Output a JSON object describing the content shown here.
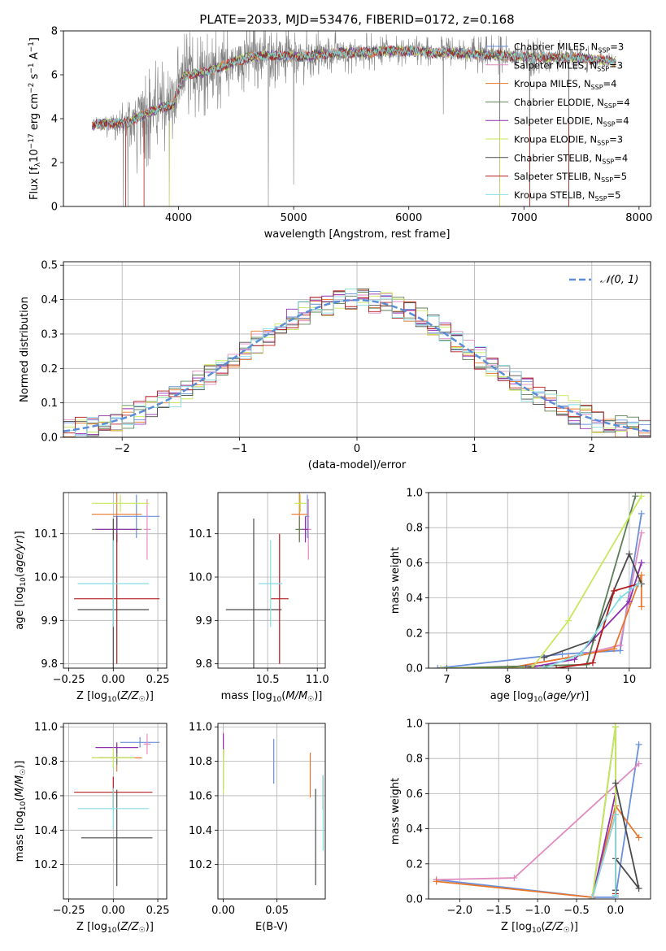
{
  "colors": {
    "Chabrier MILES": "#6a8fdc",
    "Salpeter MILES": "#e08ac0",
    "Kroupa MILES": "#e8772c",
    "Chabrier ELODIE": "#5c7f55",
    "Salpeter ELODIE": "#8e2fb0",
    "Kroupa ELODIE": "#c6e85a",
    "Chabrier STELIB": "#4a4a4a",
    "Salpeter STELIB": "#b31b1b",
    "Kroupa STELIB": "#86dde2",
    "gaussian": "#5b8ed6",
    "data": "#808080"
  },
  "chart_data": [
    {
      "id": "spectrum",
      "type": "line",
      "title": "PLATE=2033, MJD=53476, FIBERID=0172, z=0.168",
      "xlabel": "wavelength [Angstrom, rest frame]",
      "ylabel": "Flux [f_λ 10⁻¹⁷ erg cm⁻² s⁻¹ A⁻¹]",
      "xlim": [
        3000,
        8100
      ],
      "ylim": [
        0,
        8
      ],
      "xticks": [
        4000,
        5000,
        6000,
        7000,
        8000
      ],
      "yticks": [
        0,
        2,
        4,
        6,
        8
      ],
      "legend_position": "right",
      "legend": [
        {
          "label": "Chabrier MILES, N",
          "sub": "SSP",
          "tail": "=3"
        },
        {
          "label": "Salpeter MILES, N",
          "sub": "SSP",
          "tail": "=3"
        },
        {
          "label": "Kroupa MILES, N",
          "sub": "SSP",
          "tail": "=4"
        },
        {
          "label": "Chabrier ELODIE, N",
          "sub": "SSP",
          "tail": "=4"
        },
        {
          "label": "Salpeter ELODIE, N",
          "sub": "SSP",
          "tail": "=4"
        },
        {
          "label": "Kroupa ELODIE, N",
          "sub": "SSP",
          "tail": "=3"
        },
        {
          "label": "Chabrier STELIB, N",
          "sub": "SSP",
          "tail": "=4"
        },
        {
          "label": "Salpeter STELIB, N",
          "sub": "SSP",
          "tail": "=5"
        },
        {
          "label": "Kroupa STELIB, N",
          "sub": "SSP",
          "tail": "=5"
        }
      ],
      "continuum": {
        "x": [
          3250,
          3400,
          3550,
          3700,
          3850,
          3950,
          4050,
          4200,
          4400,
          4600,
          4800,
          5000,
          5200,
          5400,
          5600,
          5800,
          6000,
          6200,
          6400,
          6600,
          6800,
          7000,
          7200,
          7400,
          7600,
          7800
        ],
        "y": [
          3.7,
          3.8,
          3.8,
          4.2,
          4.5,
          4.6,
          6.0,
          6.1,
          6.4,
          6.8,
          6.9,
          6.8,
          6.9,
          7.0,
          7.0,
          7.1,
          7.1,
          7.0,
          7.0,
          6.9,
          6.9,
          6.8,
          6.8,
          6.8,
          6.7,
          6.6
        ]
      },
      "noise_amplitude": {
        "x": [
          3250,
          3500,
          3700,
          4000,
          4500,
          5000,
          5500,
          6000,
          6500,
          7000,
          7500,
          7800
        ],
        "y": [
          0.3,
          0.8,
          1.8,
          1.6,
          1.3,
          1.0,
          0.7,
          0.5,
          0.6,
          0.7,
          0.5,
          0.2
        ]
      },
      "drops": [
        [
          3520,
          0
        ],
        [
          3560,
          0
        ],
        [
          3640,
          1.5
        ],
        [
          3920,
          0
        ],
        [
          4780,
          0
        ],
        [
          5000,
          1.0
        ],
        [
          6300,
          4.2
        ],
        [
          6790,
          0
        ],
        [
          7050,
          0
        ],
        [
          7390,
          0
        ]
      ]
    },
    {
      "id": "residuals",
      "type": "bar",
      "xlabel": "(data-model)/error",
      "ylabel": "Normed distribution",
      "xlim": [
        -2.5,
        2.5
      ],
      "ylim": [
        0,
        0.51
      ],
      "xticks": [
        -2,
        -1,
        0,
        1,
        2
      ],
      "yticks": [
        0.0,
        0.1,
        0.2,
        0.3,
        0.4,
        0.5
      ],
      "legend_position": "top-right",
      "legend_label": "𝒩(0, 1)",
      "bin_width": 0.1
    },
    {
      "id": "age_vs_Z",
      "type": "scatter",
      "xlabel": "Z [log₁₀(Z/Z☉)]",
      "ylabel": "age  [log₁₀(age/yr)]",
      "xlim": [
        -0.28,
        0.3
      ],
      "ylim": [
        9.79,
        10.195
      ],
      "xticks": [
        -0.25,
        0.0,
        0.25
      ],
      "yticks": [
        9.8,
        9.9,
        10.0,
        10.1
      ],
      "points": [
        {
          "model": "Chabrier MILES",
          "x": 0.13,
          "xerr": 0.13,
          "y": 10.14,
          "yerr": 0.05
        },
        {
          "model": "Salpeter MILES",
          "x": 0.19,
          "xerr": 0.02,
          "y": 10.11,
          "yerr": 0.07
        },
        {
          "model": "Kroupa MILES",
          "x": 0.02,
          "xerr": 0.14,
          "y": 10.145,
          "yerr": 0.06
        },
        {
          "model": "Chabrier ELODIE",
          "x": 0.02,
          "xerr": 0.14,
          "y": 10.11,
          "yerr": 0.03
        },
        {
          "model": "Salpeter ELODIE",
          "x": 0.02,
          "xerr": 0.12,
          "y": 10.11,
          "yerr": 0.03
        },
        {
          "model": "Kroupa ELODIE",
          "x": 0.04,
          "xerr": 0.16,
          "y": 10.17,
          "yerr": 0.02
        },
        {
          "model": "Chabrier STELIB",
          "x": 0.0,
          "xerr": 0.2,
          "y": 9.925,
          "yerr": 0.21
        },
        {
          "model": "Salpeter STELIB",
          "x": 0.02,
          "xerr": 0.24,
          "y": 9.95,
          "yerr": 0.15
        },
        {
          "model": "Kroupa STELIB",
          "x": 0.0,
          "xerr": 0.2,
          "y": 9.985,
          "yerr": 0.1
        }
      ]
    },
    {
      "id": "age_vs_mass",
      "type": "scatter",
      "xlabel": "mass [log₁₀(M/M☉)]",
      "ylabel": "",
      "xlim": [
        10.0,
        11.08
      ],
      "ylim": [
        9.79,
        10.195
      ],
      "xticks": [
        10.5,
        11.0
      ],
      "yticks": [
        9.8,
        9.9,
        10.0,
        10.1
      ],
      "points": [
        {
          "model": "Chabrier MILES",
          "x": 10.9,
          "xerr": 0.02,
          "y": 10.14,
          "yerr": 0.05
        },
        {
          "model": "Salpeter MILES",
          "x": 10.91,
          "xerr": 0.03,
          "y": 10.11,
          "yerr": 0.07
        },
        {
          "model": "Kroupa MILES",
          "x": 10.82,
          "xerr": 0.08,
          "y": 10.145,
          "yerr": 0.06
        },
        {
          "model": "Chabrier ELODIE",
          "x": 10.82,
          "xerr": 0.04,
          "y": 10.11,
          "yerr": 0.03
        },
        {
          "model": "Salpeter ELODIE",
          "x": 10.88,
          "xerr": 0.03,
          "y": 10.11,
          "yerr": 0.03
        },
        {
          "model": "Kroupa ELODIE",
          "x": 10.83,
          "xerr": 0.06,
          "y": 10.17,
          "yerr": 0.02
        },
        {
          "model": "Chabrier STELIB",
          "x": 10.36,
          "xerr": 0.28,
          "y": 9.925,
          "yerr": 0.21
        },
        {
          "model": "Salpeter STELIB",
          "x": 10.62,
          "xerr": 0.09,
          "y": 9.95,
          "yerr": 0.15
        },
        {
          "model": "Kroupa STELIB",
          "x": 10.53,
          "xerr": 0.12,
          "y": 9.985,
          "yerr": 0.1
        }
      ]
    },
    {
      "id": "massweight_vs_age",
      "type": "line",
      "xlabel": "age  [log₁₀(age/yr)]",
      "ylabel": "mass weight",
      "xlim": [
        6.7,
        10.35
      ],
      "ylim": [
        0,
        1.0
      ],
      "xticks": [
        7,
        8,
        9,
        10
      ],
      "yticks": [
        0.0,
        0.2,
        0.4,
        0.6,
        0.8,
        1.0
      ],
      "series": [
        {
          "model": "Chabrier MILES",
          "x": [
            6.85,
            8.9,
            9.85,
            10.2
          ],
          "y": [
            0.0,
            0.08,
            0.1,
            0.88
          ]
        },
        {
          "model": "Salpeter MILES",
          "x": [
            8.0,
            9.0,
            9.85,
            10.2
          ],
          "y": [
            0.0,
            0.06,
            0.13,
            0.77
          ]
        },
        {
          "model": "Kroupa MILES",
          "x": [
            8.0,
            9.0,
            9.75,
            10.2,
            10.2
          ],
          "y": [
            0.0,
            0.06,
            0.11,
            0.53,
            0.35
          ]
        },
        {
          "model": "Chabrier ELODIE",
          "x": [
            7.0,
            9.3,
            10.1
          ],
          "y": [
            0.0,
            0.02,
            0.98
          ]
        },
        {
          "model": "Salpeter ELODIE",
          "x": [
            8.3,
            9.1,
            10.0,
            10.2
          ],
          "y": [
            0.0,
            0.05,
            0.38,
            0.6
          ]
        },
        {
          "model": "Kroupa ELODIE",
          "x": [
            6.9,
            8.4,
            9.0,
            10.2
          ],
          "y": [
            0.0,
            0.0,
            0.27,
            0.98
          ]
        },
        {
          "model": "Chabrier STELIB",
          "x": [
            8.6,
            9.4,
            10.0,
            10.2
          ],
          "y": [
            0.06,
            0.16,
            0.65,
            0.48
          ]
        },
        {
          "model": "Salpeter STELIB",
          "x": [
            8.8,
            9.4,
            9.75,
            10.15
          ],
          "y": [
            0.0,
            0.03,
            0.44,
            0.48
          ]
        },
        {
          "model": "Kroupa STELIB",
          "x": [
            8.6,
            9.2,
            9.85,
            10.15
          ],
          "y": [
            0.0,
            0.08,
            0.4,
            0.48
          ]
        }
      ]
    },
    {
      "id": "mass_vs_Z",
      "type": "scatter",
      "xlabel": "Z [log₁₀(Z/Z☉)]",
      "ylabel": "mass [log₁₀(M/M☉)]",
      "xlim": [
        -0.28,
        0.3
      ],
      "ylim": [
        10.0,
        11.02
      ],
      "xticks": [
        -0.25,
        0.0,
        0.25
      ],
      "yticks": [
        10.2,
        10.4,
        10.6,
        10.8,
        11.0
      ],
      "points": [
        {
          "model": "Chabrier MILES",
          "x": 0.15,
          "xerr": 0.11,
          "y": 10.91,
          "yerr": 0.03
        },
        {
          "model": "Salpeter MILES",
          "x": 0.19,
          "xerr": 0.02,
          "y": 10.9,
          "yerr": 0.06
        },
        {
          "model": "Kroupa MILES",
          "x": 0.02,
          "xerr": 0.14,
          "y": 10.82,
          "yerr": 0.08
        },
        {
          "model": "Chabrier ELODIE",
          "x": 0.02,
          "xerr": 0.1,
          "y": 10.82,
          "yerr": 0.04
        },
        {
          "model": "Salpeter ELODIE",
          "x": 0.02,
          "xerr": 0.12,
          "y": 10.88,
          "yerr": 0.03
        },
        {
          "model": "Kroupa ELODIE",
          "x": 0.0,
          "xerr": 0.12,
          "y": 10.82,
          "yerr": 0.06
        },
        {
          "model": "Chabrier STELIB",
          "x": 0.02,
          "xerr": 0.2,
          "y": 10.355,
          "yerr": 0.28
        },
        {
          "model": "Salpeter STELIB",
          "x": 0.0,
          "xerr": 0.22,
          "y": 10.62,
          "yerr": 0.09
        },
        {
          "model": "Kroupa STELIB",
          "x": 0.0,
          "xerr": 0.2,
          "y": 10.525,
          "yerr": 0.12
        }
      ]
    },
    {
      "id": "mass_vs_ebv",
      "type": "scatter",
      "xlabel": "E(B-V)",
      "ylabel": "",
      "xlim": [
        -0.005,
        0.095
      ],
      "ylim": [
        10.0,
        11.02
      ],
      "xticks": [
        0.0,
        0.05
      ],
      "yticks": [
        10.2,
        10.4,
        10.6,
        10.8,
        11.0
      ],
      "points": [
        {
          "model": "Chabrier MILES",
          "x": 0.047,
          "y": 10.8,
          "yerr": 0.13
        },
        {
          "model": "Salpeter MILES",
          "x": 0.0,
          "y": 10.9,
          "yerr": 0.07
        },
        {
          "model": "Kroupa MILES",
          "x": 0.081,
          "y": 10.72,
          "yerr": 0.13
        },
        {
          "model": "Chabrier ELODIE",
          "x": 0.0,
          "y": 10.76,
          "yerr": 0.12
        },
        {
          "model": "Salpeter ELODIE",
          "x": 0.0,
          "y": 10.9,
          "yerr": 0.06
        },
        {
          "model": "Kroupa ELODIE",
          "x": 0.0,
          "y": 10.74,
          "yerr": 0.13
        },
        {
          "model": "Chabrier STELIB",
          "x": 0.086,
          "y": 10.36,
          "yerr": 0.28
        },
        {
          "model": "Salpeter STELIB",
          "x": 0.093,
          "y": 10.62,
          "yerr": 0.1
        },
        {
          "model": "Kroupa STELIB",
          "x": 0.093,
          "y": 10.5,
          "yerr": 0.22
        }
      ]
    },
    {
      "id": "massweight_vs_Z",
      "type": "line",
      "xlabel": "Z [log₁₀(Z/Z☉)]",
      "ylabel": "mass weight",
      "xlim": [
        -2.4,
        0.45
      ],
      "ylim": [
        0,
        1.0
      ],
      "xticks": [
        -2.0,
        -1.5,
        -1.0,
        -0.5,
        0.0
      ],
      "yticks": [
        0.0,
        0.2,
        0.4,
        0.6,
        0.8,
        1.0
      ],
      "series": [
        {
          "model": "Chabrier MILES",
          "x": [
            -2.3,
            -0.3,
            0.0,
            0.3
          ],
          "y": [
            0.11,
            0.01,
            0.01,
            0.88
          ]
        },
        {
          "model": "Salpeter MILES",
          "x": [
            -2.3,
            -1.3,
            0.3
          ],
          "y": [
            0.11,
            0.12,
            0.77
          ]
        },
        {
          "model": "Kroupa MILES",
          "x": [
            -2.3,
            -0.3,
            0.0,
            0.3
          ],
          "y": [
            0.1,
            0.01,
            0.53,
            0.35
          ]
        },
        {
          "model": "Chabrier ELODIE",
          "x": [
            -0.3,
            0.0,
            0.0
          ],
          "y": [
            0.0,
            0.98,
            0.02
          ]
        },
        {
          "model": "Salpeter ELODIE",
          "x": [
            -0.3,
            0.0,
            0.0
          ],
          "y": [
            0.0,
            0.6,
            0.05
          ]
        },
        {
          "model": "Kroupa ELODIE",
          "x": [
            -0.3,
            0.0,
            0.0
          ],
          "y": [
            0.0,
            0.98,
            0.02
          ]
        },
        {
          "model": "Chabrier STELIB",
          "x": [
            0.0,
            0.3,
            0.0,
            0.0
          ],
          "y": [
            0.66,
            0.06,
            0.23,
            0.05
          ]
        },
        {
          "model": "Salpeter STELIB",
          "x": [
            -0.3,
            0.0,
            0.0
          ],
          "y": [
            0.0,
            0.48,
            0.03
          ]
        },
        {
          "model": "Kroupa STELIB",
          "x": [
            -0.3,
            0.0,
            0.0
          ],
          "y": [
            0.0,
            0.48,
            0.02
          ]
        }
      ]
    }
  ]
}
